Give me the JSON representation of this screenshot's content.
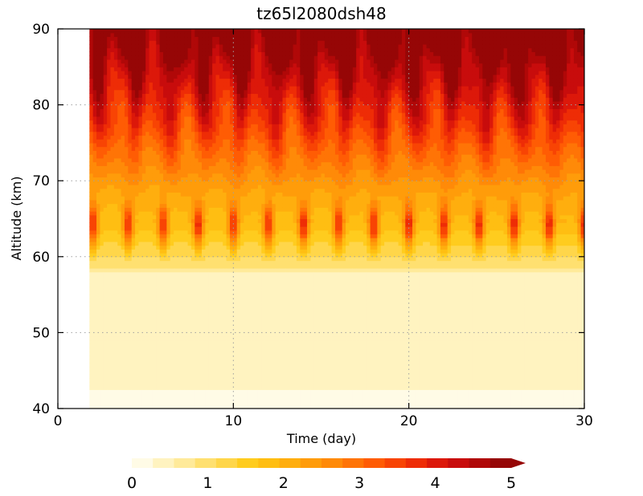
{
  "chart_data": {
    "type": "heatmap",
    "title": "tz65l2080dsh48",
    "xlabel": "Time (day)",
    "ylabel": "Altitude (km)",
    "xlim": [
      0,
      30
    ],
    "ylim": [
      40,
      90
    ],
    "x_ticks": [
      0,
      10,
      20,
      30
    ],
    "x_tick_labels": [
      "0",
      "10",
      "20",
      "30"
    ],
    "y_ticks": [
      40,
      50,
      60,
      70,
      80,
      90
    ],
    "y_tick_labels": [
      "40",
      "50",
      "60",
      "70",
      "80",
      "90"
    ],
    "grid": true,
    "data_start_day": 1.8,
    "pulse_days": [
      2,
      4,
      6,
      8,
      10,
      12,
      14,
      16,
      18,
      20,
      22,
      24,
      26,
      28,
      30
    ],
    "colorbar": {
      "min": 0,
      "max": 5,
      "extend": "max",
      "ticks": [
        0,
        1,
        2,
        3,
        4,
        5
      ],
      "tick_labels": [
        "0",
        "1",
        "2",
        "3",
        "4",
        "5"
      ],
      "colors": [
        "#fffbe6",
        "#fff3c0",
        "#ffea9a",
        "#ffe070",
        "#ffd64a",
        "#ffcc1e",
        "#ffbe12",
        "#ffae0e",
        "#ff9c0a",
        "#ff8a08",
        "#ff7406",
        "#ff5c04",
        "#f84404",
        "#ee2c06",
        "#dc180a",
        "#c80c0c",
        "#b00808",
        "#960606"
      ]
    }
  }
}
